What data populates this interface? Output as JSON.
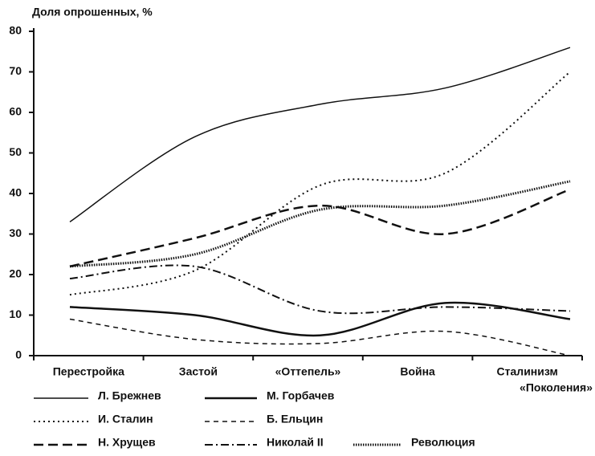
{
  "chart_data": {
    "type": "line",
    "y_label": "Доля опрошенных, %",
    "x_label": "«Поколения»",
    "categories": [
      "Перестройка",
      "Застой",
      "«Оттепель»",
      "Война",
      "Сталинизм"
    ],
    "ylim": [
      0,
      80
    ],
    "yticks": [
      0,
      10,
      20,
      30,
      40,
      50,
      60,
      70,
      80
    ],
    "series": [
      {
        "name": "Л. Брежнев",
        "color": "#111111",
        "line_style": "solid",
        "width": 1.5,
        "values": [
          33,
          54,
          62,
          66,
          76
        ]
      },
      {
        "name": "И. Сталин",
        "color": "#111111",
        "line_style": "dotted",
        "width": 2,
        "values": [
          15,
          21,
          42,
          45,
          70
        ]
      },
      {
        "name": "Н. Хрущев",
        "color": "#111111",
        "line_style": "dashed",
        "width": 2.5,
        "values": [
          22,
          29,
          37,
          30,
          41
        ]
      },
      {
        "name": "М. Горбачев",
        "color": "#111111",
        "line_style": "solid",
        "width": 2.5,
        "values": [
          12,
          10,
          5,
          13,
          9
        ]
      },
      {
        "name": "Б. Ельцин",
        "color": "#111111",
        "line_style": "short-dashed",
        "width": 1.5,
        "values": [
          9,
          4,
          3,
          6,
          0
        ]
      },
      {
        "name": "Николай II",
        "color": "#111111",
        "line_style": "dash-dot",
        "width": 2,
        "values": [
          19,
          22,
          11,
          12,
          11
        ]
      },
      {
        "name": "Революция",
        "color": "#111111",
        "line_style": "dense-dotted",
        "width": 3,
        "values": [
          22,
          25,
          36,
          37,
          43
        ]
      }
    ]
  }
}
